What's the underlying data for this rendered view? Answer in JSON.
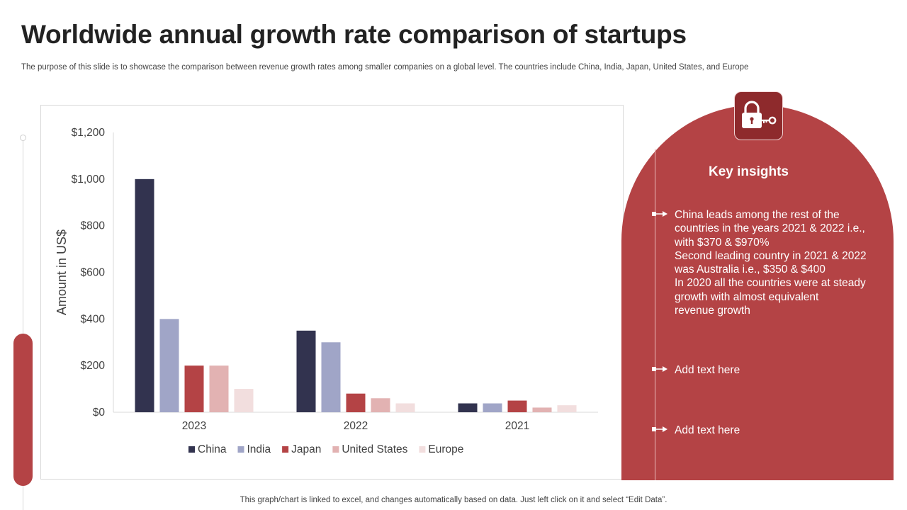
{
  "title": "Worldwide annual growth rate comparison of startups",
  "subtitle": "The purpose of this slide is to showcase the comparison between revenue growth rates among smaller companies on a global level. The countries include China, India, Japan, United States, and Europe",
  "chart_data": {
    "type": "bar",
    "categories": [
      "2023",
      "2022",
      "2021"
    ],
    "series": [
      {
        "name": "China",
        "values": [
          1000,
          350,
          38
        ],
        "color": "#32334f"
      },
      {
        "name": "India",
        "values": [
          400,
          300,
          38
        ],
        "color": "#a0a5c7"
      },
      {
        "name": "Japan",
        "values": [
          200,
          80,
          50
        ],
        "color": "#b44345"
      },
      {
        "name": "United States",
        "values": [
          200,
          60,
          20
        ],
        "color": "#e2b2b2"
      },
      {
        "name": "Europe",
        "values": [
          100,
          38,
          30
        ],
        "color": "#f2dede"
      }
    ],
    "ylabel": "Amount in US$",
    "xlabel": "",
    "ylim": [
      0,
      1200
    ],
    "yticks": [
      0,
      200,
      400,
      600,
      800,
      1000,
      1200
    ],
    "ytick_labels": [
      "$0",
      "$200",
      "$400",
      "$600",
      "$800",
      "$1,000",
      "$1,200"
    ],
    "legend_position": "bottom",
    "grid": false
  },
  "insights": {
    "title": "Key insights",
    "icon": "lock-key-icon",
    "items": [
      {
        "lines": [
          "China leads among the rest of the",
          "countries in the years 2021 & 2022 i.e.,",
          "with $370 & $970%",
          "Second leading country  in 2021 & 2022",
          "was Australia i.e., $350 & $400",
          "In 2020 all the countries were at steady",
          "growth with almost equivalent",
          "revenue growth"
        ]
      },
      {
        "lines": [
          "Add text here"
        ]
      },
      {
        "lines": [
          "Add text here"
        ]
      }
    ]
  },
  "footer": "This graph/chart is linked to excel, and changes automatically based on data. Just left click on it and select “Edit Data”.",
  "colors": {
    "accent": "#b44345",
    "dark": "#8e2a2c"
  }
}
